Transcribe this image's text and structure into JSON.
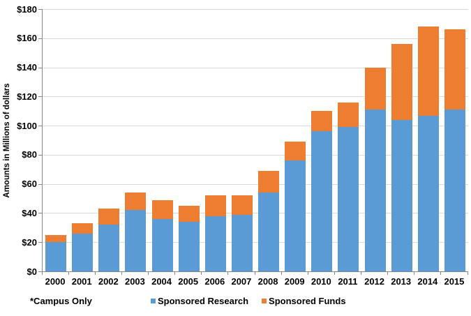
{
  "chart_data": {
    "type": "bar",
    "stacked": true,
    "categories": [
      "2000",
      "2001",
      "2002",
      "2003",
      "2004",
      "2005",
      "2006",
      "2007",
      "2008",
      "2009",
      "2010",
      "2011",
      "2012",
      "2013",
      "2014",
      "2015"
    ],
    "series": [
      {
        "name": "Sponsored Research",
        "color": "#5B9BD5",
        "values": [
          20,
          26,
          32,
          42,
          36,
          34,
          38,
          39,
          54,
          76,
          96,
          99,
          111,
          104,
          107,
          111
        ]
      },
      {
        "name": "Sponsored Funds",
        "color": "#ED7D31",
        "values": [
          5,
          7,
          11,
          12,
          13,
          11,
          14,
          13,
          15,
          13,
          14,
          17,
          29,
          52,
          61,
          55
        ]
      }
    ],
    "xlabel": "",
    "ylabel": "Amounts in Millions of dollars",
    "ylim": [
      0,
      180
    ],
    "ytick_step": 20,
    "ytick_labels": [
      "$0",
      "$20",
      "$40",
      "$60",
      "$80",
      "$100",
      "$120",
      "$140",
      "$160",
      "$180"
    ],
    "grid": "horizontal",
    "gridline_color": "#D9D9D9",
    "axis_color": "#868686",
    "legend_position": "bottom-center",
    "note": "*Campus Only"
  }
}
